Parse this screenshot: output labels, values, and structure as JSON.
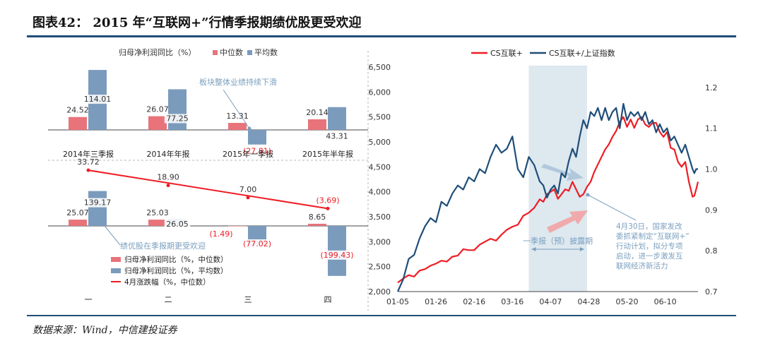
{
  "page": {
    "title": "图表42： 2015 年“互联网+”行情季报期绩优股更受欢迎",
    "source": "数据来源：Wind，中信建投证券"
  },
  "colors": {
    "red": "#e8737a",
    "blue": "#7b9bbd",
    "red_line": "#ef1c24",
    "navy_line": "#1f4e79",
    "shade": "#dde8ef",
    "annotation": "#7a9fbf"
  },
  "chart_data": [
    {
      "type": "bar",
      "ylabel": "归母净利润同比（%）",
      "legend_position": "top",
      "categories": [
        "2014年三季报",
        "2014年年报",
        "2015年一季报",
        "2015年半年报"
      ],
      "series": [
        {
          "name": "中位数",
          "values": [
            24.52,
            26.07,
            13.31,
            20.14
          ],
          "labels": [
            "24.52",
            "26.07",
            "13.31",
            "20.14"
          ]
        },
        {
          "name": "平均数",
          "values": [
            114.01,
            77.25,
            -27.81,
            43.31
          ],
          "labels": [
            "114.01",
            "77.25",
            "(27.81)",
            "43.31"
          ]
        }
      ],
      "annotation": "板块整体业绩持续下滑"
    },
    {
      "type": "bar",
      "categories": [
        "一",
        "二",
        "三",
        "四"
      ],
      "legend_position": "bottom-left",
      "series": [
        {
          "name": "归母净利润同比（%，中位数）",
          "values": [
            25.07,
            25.03,
            -1.49,
            8.65
          ],
          "labels": [
            "25.07",
            "25.03",
            "(1.49)",
            "8.65"
          ]
        },
        {
          "name": "归母净利润同比（%，平均数）",
          "values": [
            139.17,
            26.05,
            -77.02,
            -199.43
          ],
          "labels": [
            "139.17",
            "26.05",
            "(77.02)",
            "(199.43)"
          ]
        },
        {
          "name": "4月涨跌幅（%，中位数）",
          "type": "line",
          "values": [
            33.72,
            18.9,
            7.0,
            -3.69
          ],
          "labels": [
            "33.72",
            "18.90",
            "7.00",
            "(3.69)"
          ]
        }
      ],
      "annotation": "绩优股在季报期更受欢迎"
    },
    {
      "type": "line",
      "legend_position": "top",
      "x_ticks": [
        "01-05",
        "01-26",
        "02-16",
        "03-16",
        "04-07",
        "04-28",
        "05-20",
        "06-10"
      ],
      "y_left": {
        "ticks": [
          "2,000",
          "2,500",
          "3,000",
          "3,500",
          "4,000",
          "4,500",
          "5,000",
          "5,500",
          "6,000",
          "6,500"
        ],
        "range": [
          2000,
          6500
        ]
      },
      "y_right": {
        "ticks": [
          "0.7",
          "0.8",
          "0.9",
          "1.0",
          "1.1",
          "1.2"
        ],
        "range": [
          0.7,
          1.25
        ]
      },
      "series": [
        {
          "name": "CS互联+",
          "axis": "left",
          "color": "#ef1c24",
          "x": [
            0,
            3,
            6,
            9,
            12,
            15,
            18,
            21,
            24,
            27,
            30,
            33,
            36,
            39,
            42,
            45,
            48,
            51,
            54,
            57,
            60,
            63,
            66,
            69,
            72,
            75,
            78,
            80,
            82,
            84,
            86,
            88,
            90,
            92,
            94,
            96,
            98,
            100,
            102,
            104,
            106,
            108,
            110,
            112,
            114,
            116,
            118,
            120,
            122,
            124,
            126,
            128,
            130,
            132,
            134,
            136,
            138,
            140,
            142,
            144,
            146,
            148,
            150,
            152,
            154,
            156,
            158,
            160,
            162,
            163,
            164,
            165
          ],
          "y": [
            2180,
            2260,
            2330,
            2300,
            2420,
            2450,
            2520,
            2560,
            2620,
            2600,
            2700,
            2720,
            2850,
            2830,
            2830,
            2940,
            3000,
            3060,
            3020,
            3140,
            3240,
            3300,
            3340,
            3520,
            3580,
            3680,
            3850,
            3800,
            3950,
            4000,
            4050,
            3860,
            3950,
            4050,
            4020,
            4200,
            4050,
            3900,
            3950,
            4100,
            4200,
            4400,
            4550,
            4700,
            4850,
            4950,
            5100,
            5220,
            5400,
            5500,
            5300,
            5450,
            5280,
            5450,
            5500,
            5350,
            5300,
            5380,
            5380,
            5200,
            5100,
            5200,
            4880,
            4850,
            4600,
            4500,
            4600,
            4200,
            3900,
            3920,
            4050,
            4200
          ]
        },
        {
          "name": "CS互联+/上证指数",
          "axis": "right",
          "color": "#1f4e79",
          "x": [
            0,
            3,
            6,
            9,
            12,
            15,
            18,
            21,
            24,
            27,
            30,
            33,
            36,
            39,
            42,
            45,
            48,
            51,
            54,
            57,
            60,
            63,
            66,
            69,
            72,
            75,
            78,
            80,
            82,
            84,
            86,
            88,
            90,
            92,
            94,
            96,
            98,
            100,
            102,
            104,
            106,
            108,
            110,
            112,
            114,
            116,
            118,
            120,
            122,
            124,
            126,
            128,
            130,
            132,
            134,
            136,
            138,
            140,
            142,
            144,
            146,
            148,
            150,
            152,
            154,
            156,
            158,
            160,
            162,
            163,
            164,
            165
          ],
          "y": [
            0.7,
            0.73,
            0.78,
            0.79,
            0.83,
            0.86,
            0.88,
            0.87,
            0.92,
            0.91,
            0.94,
            0.96,
            0.95,
            0.98,
            0.97,
            1.0,
            0.99,
            1.03,
            1.06,
            1.04,
            1.05,
            1.08,
            1.0,
            0.98,
            1.03,
            1.01,
            0.97,
            0.96,
            0.93,
            0.95,
            0.96,
            0.94,
            0.99,
            0.98,
            1.02,
            1.05,
            1.03,
            1.08,
            1.12,
            1.1,
            1.14,
            1.13,
            1.15,
            1.12,
            1.15,
            1.12,
            1.14,
            1.15,
            1.1,
            1.16,
            1.12,
            1.14,
            1.13,
            1.14,
            1.12,
            1.14,
            1.11,
            1.12,
            1.09,
            1.11,
            1.09,
            1.1,
            1.07,
            1.08,
            1.06,
            1.04,
            1.06,
            1.03,
            1.0,
            0.99,
            1.0,
            1.0
          ]
        }
      ],
      "shaded_region_label": "一季报（预）披露期",
      "annotation": "4月30日，国家发改委抓紧制定“互联网+”行动计划，拟分专项启动，进一步激发互联网经济新活力"
    }
  ]
}
